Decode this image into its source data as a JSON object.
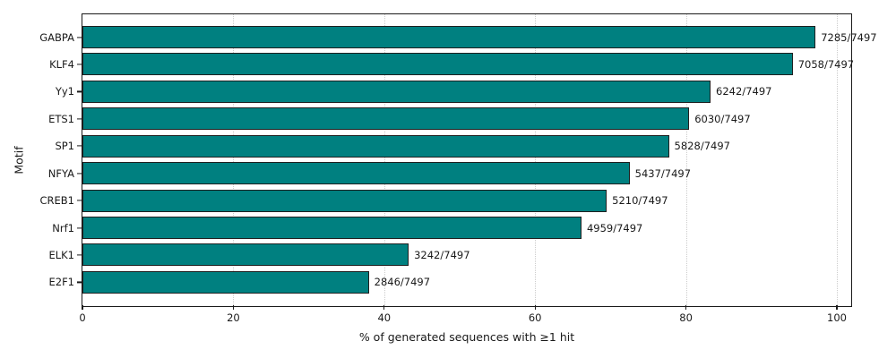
{
  "chart_data": {
    "type": "bar",
    "orientation": "horizontal",
    "title": "",
    "xlabel": "% of generated sequences with ≥1 hit",
    "ylabel": "Motif",
    "categories": [
      "GABPA",
      "KLF4",
      "Yy1",
      "ETS1",
      "SP1",
      "NFYA",
      "CREB1",
      "Nrf1",
      "ELK1",
      "E2F1"
    ],
    "total_sequences": 7497,
    "hits": [
      7285,
      7058,
      6242,
      6030,
      5828,
      5437,
      5210,
      4959,
      3242,
      2846
    ],
    "percent": [
      97.2,
      94.1,
      83.3,
      80.4,
      77.7,
      72.5,
      69.5,
      66.1,
      43.2,
      38.0
    ],
    "bar_labels": [
      "7285/7497",
      "7058/7497",
      "6242/7497",
      "6030/7497",
      "5828/7497",
      "5437/7497",
      "5210/7497",
      "4959/7497",
      "3242/7497",
      "2846/7497"
    ],
    "xticks": [
      0,
      20,
      40,
      60,
      80,
      100
    ],
    "xlim": [
      0,
      102.1
    ],
    "grid": {
      "axis": "x",
      "style": "dotted"
    },
    "legend": null,
    "colors": {
      "bar_fill": "#008080",
      "bar_edge": "#1f1f1f",
      "grid_line": "#cccccc",
      "spine": "#1a1a1a",
      "text": "#1a1a1a"
    }
  }
}
